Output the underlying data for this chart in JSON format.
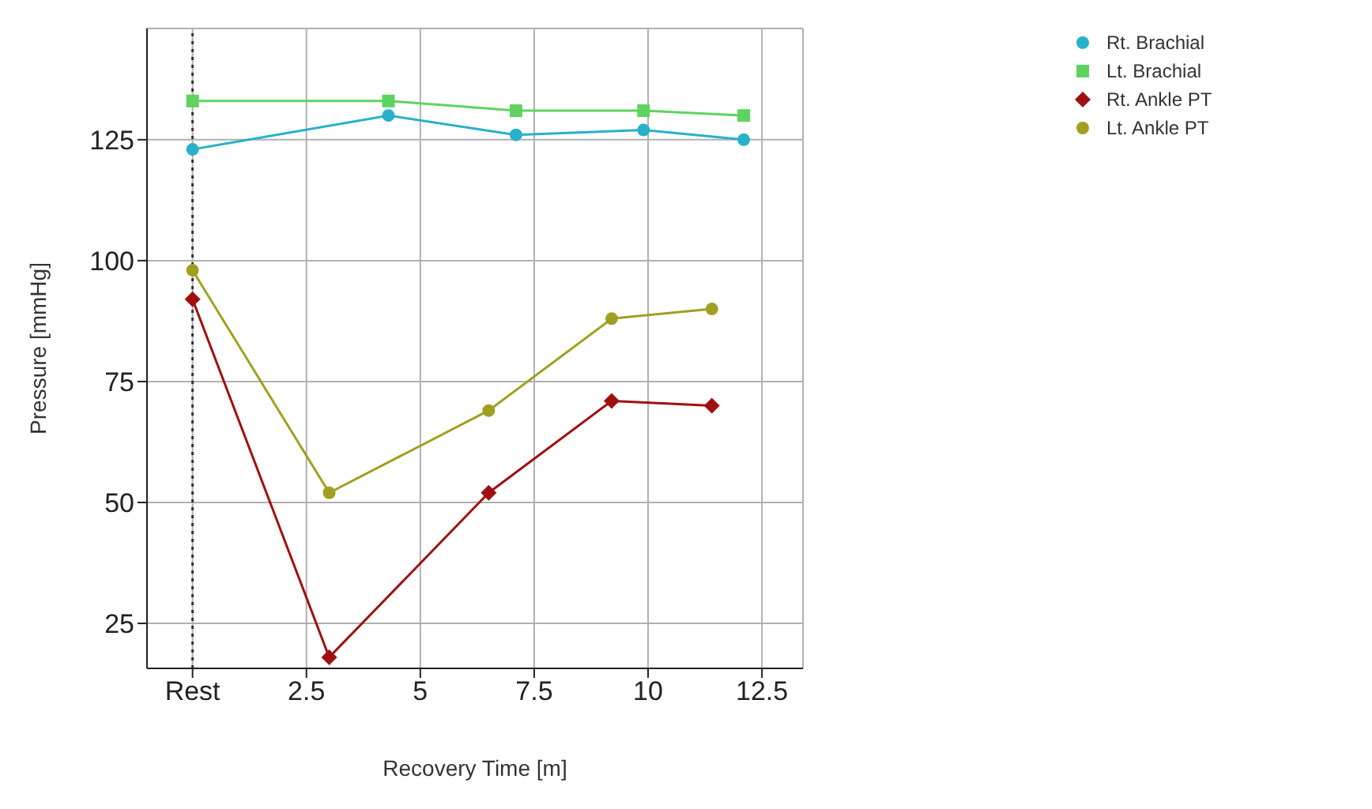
{
  "chart_data": {
    "type": "line",
    "xlabel": "Recovery Time [m]",
    "ylabel": "Pressure [mmHg]",
    "xlim": [
      -1,
      13.4
    ],
    "xticks": [
      {
        "value": 0,
        "label": "Rest"
      },
      2.5,
      5,
      7.5,
      10,
      12.5
    ],
    "ylim": [
      15.7,
      148
    ],
    "yticks": [
      25,
      50,
      75,
      100,
      125
    ],
    "grid": true,
    "legend": "top right",
    "ref_lines": [
      {
        "axis": "x",
        "value": 0,
        "color": "#333333",
        "line_style": "dotted"
      }
    ],
    "series": [
      {
        "name": "Rt. Brachial",
        "color": "#29b1c9",
        "marker": "circle",
        "x": [
          0,
          4.3,
          7.1,
          9.9,
          12.1
        ],
        "values": [
          123,
          130,
          126,
          127,
          125
        ]
      },
      {
        "name": "Lt. Brachial",
        "color": "#5fd35f",
        "marker": "square",
        "x": [
          0,
          4.3,
          7.1,
          9.9,
          12.1
        ],
        "values": [
          133,
          133,
          131,
          131,
          130
        ]
      },
      {
        "name": "Rt. Ankle PT",
        "color": "#a01010",
        "marker": "diamond",
        "x": [
          0,
          3.0,
          6.5,
          9.2,
          11.4
        ],
        "values": [
          92,
          18,
          52,
          71,
          70
        ]
      },
      {
        "name": "Lt. Ankle PT",
        "color": "#a0a020",
        "marker": "circle",
        "x": [
          0,
          3.0,
          6.5,
          9.2,
          11.4
        ],
        "values": [
          98,
          52,
          69,
          88,
          90
        ]
      }
    ]
  }
}
